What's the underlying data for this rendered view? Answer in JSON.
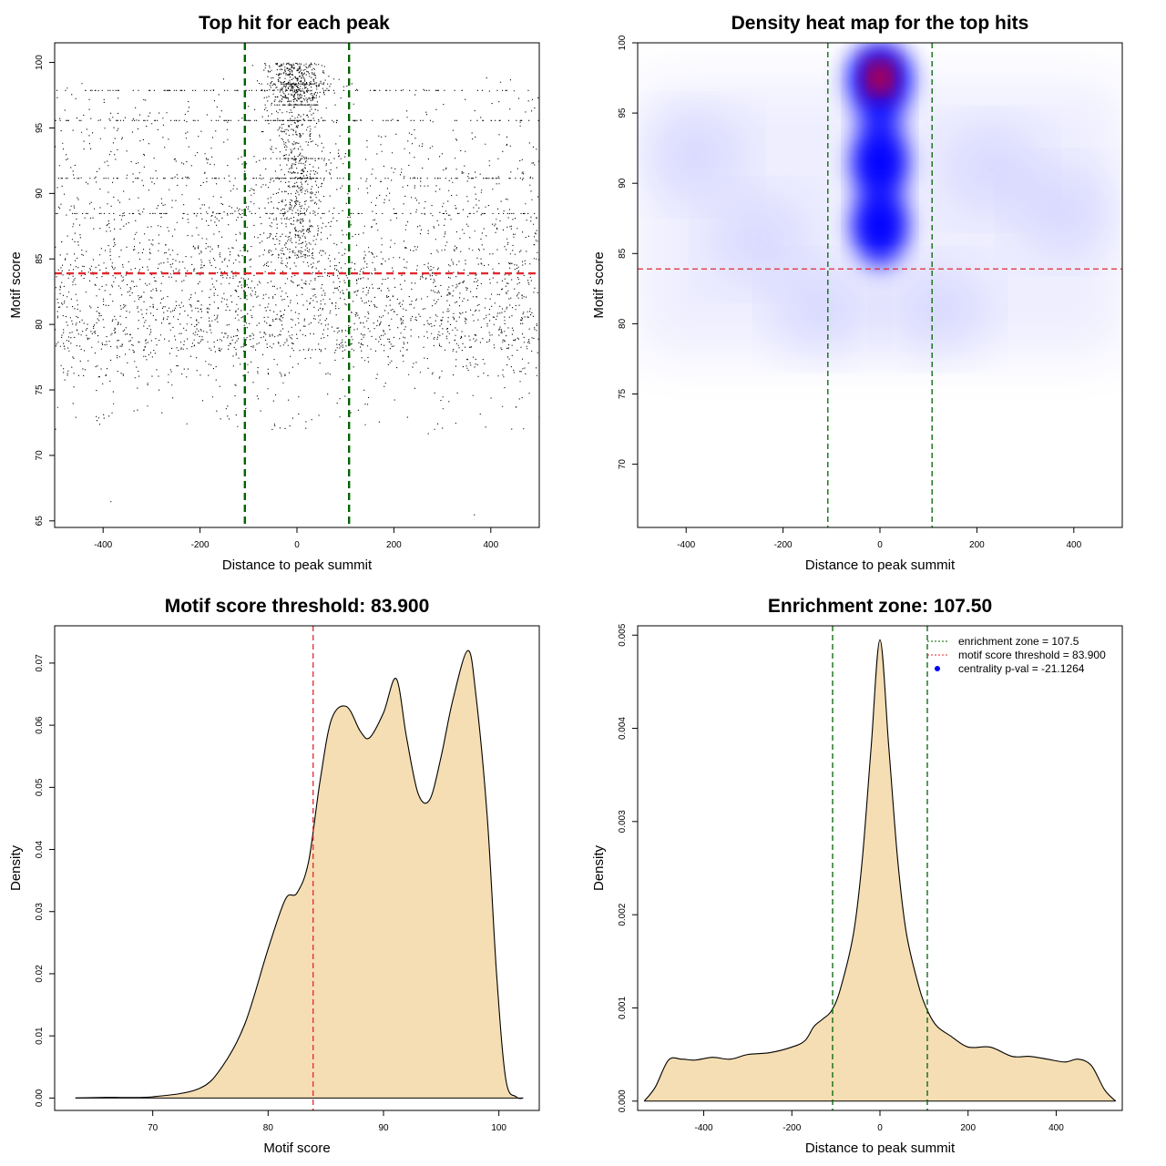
{
  "colors": {
    "threshold_line": "#e0282e",
    "zone_line": "#006400",
    "density_fill": "#f5deb3",
    "heat_low": "#ffffff",
    "heat_mid": "#0000ff",
    "heat_high": "#ff0000",
    "points": "#000000"
  },
  "chart_data": [
    {
      "type": "scatter",
      "title": "Top hit for each peak",
      "xlabel": "Distance to peak summit",
      "ylabel": "Motif score",
      "xlim": [
        -500,
        500
      ],
      "ylim": [
        64.5,
        101.5
      ],
      "xticks": [
        -400,
        -200,
        0,
        200,
        400
      ],
      "yticks": [
        65,
        70,
        75,
        80,
        85,
        90,
        95,
        100
      ],
      "hlines": [
        83.9
      ],
      "vlines": [
        -107.5,
        107.5
      ],
      "points_description": "approx. 10000 points; uniform in distance (-500..500) with a dense column at |distance| < 110 between scores 85 and 100"
    },
    {
      "type": "heatmap",
      "title": "Density heat map for the top hits",
      "xlabel": "Distance to peak summit",
      "ylabel": "Motif score",
      "xlim": [
        -500,
        500
      ],
      "ylim": [
        65.5,
        100
      ],
      "xticks": [
        -400,
        -200,
        0,
        200,
        400
      ],
      "yticks": [
        70,
        75,
        80,
        85,
        90,
        95,
        100
      ],
      "hlines": [
        83.9
      ],
      "vlines": [
        -107.5,
        107.5
      ],
      "hotspots": [
        {
          "x": 0,
          "y": 97.5,
          "level": 1.0
        },
        {
          "x": 0,
          "y": 91.5,
          "level": 0.55
        },
        {
          "x": 0,
          "y": 87,
          "level": 0.5
        }
      ]
    },
    {
      "type": "area",
      "title": "Motif score threshold: 83.900",
      "xlabel": "Motif score",
      "ylabel": "Density",
      "xlim": [
        61.5,
        103.5
      ],
      "ylim": [
        -0.002,
        0.076
      ],
      "xticks": [
        70,
        80,
        90,
        100
      ],
      "yticks": [
        0.0,
        0.01,
        0.02,
        0.03,
        0.04,
        0.05,
        0.06,
        0.07
      ],
      "ytick_labels": [
        "0.00",
        "0.01",
        "0.02",
        "0.03",
        "0.04",
        "0.05",
        "0.06",
        "0.07"
      ],
      "vlines": [
        83.9
      ],
      "x": [
        63.3,
        66,
        70,
        74,
        76,
        78,
        80,
        81.5,
        82.5,
        83.5,
        84.5,
        85.5,
        86.8,
        88,
        88.8,
        90,
        91.1,
        92,
        93,
        94,
        95,
        96,
        97.3,
        98,
        99,
        99.8,
        100.6,
        101.5,
        102.1
      ],
      "y": [
        0.0,
        0.0001,
        0.0002,
        0.0015,
        0.005,
        0.012,
        0.024,
        0.032,
        0.033,
        0.038,
        0.051,
        0.061,
        0.063,
        0.059,
        0.058,
        0.062,
        0.0675,
        0.058,
        0.049,
        0.048,
        0.055,
        0.064,
        0.072,
        0.065,
        0.045,
        0.02,
        0.003,
        0.0002,
        0.0
      ]
    },
    {
      "type": "area",
      "title": "Enrichment zone: 107.50",
      "xlabel": "Distance to peak summit",
      "ylabel": "Density",
      "xlim": [
        -550,
        550
      ],
      "ylim": [
        -0.0001,
        0.0051
      ],
      "xticks": [
        -400,
        -200,
        0,
        200,
        400
      ],
      "yticks": [
        0.0,
        0.001,
        0.002,
        0.003,
        0.004,
        0.005
      ],
      "ytick_labels": [
        "0.000",
        "0.001",
        "0.002",
        "0.003",
        "0.004",
        "0.005"
      ],
      "vlines": [
        -107.5,
        107.5
      ],
      "x": [
        -535,
        -510,
        -480,
        -450,
        -420,
        -380,
        -340,
        -300,
        -250,
        -200,
        -170,
        -150,
        -130,
        -110,
        -90,
        -60,
        -40,
        -20,
        0,
        20,
        40,
        60,
        90,
        110,
        130,
        160,
        200,
        250,
        300,
        340,
        380,
        420,
        450,
        480,
        510,
        535
      ],
      "y": [
        0.0,
        0.00015,
        0.00044,
        0.00045,
        0.00044,
        0.00047,
        0.00045,
        0.0005,
        0.00052,
        0.00058,
        0.00065,
        0.0008,
        0.00088,
        0.00097,
        0.0012,
        0.0018,
        0.0026,
        0.0038,
        0.00495,
        0.0038,
        0.0026,
        0.0018,
        0.0012,
        0.00095,
        0.0008,
        0.0007,
        0.00058,
        0.00058,
        0.00048,
        0.00048,
        0.00045,
        0.00042,
        0.00045,
        0.00038,
        0.00012,
        0.0
      ],
      "legend": {
        "placement": "top-right",
        "entries": [
          "enrichment zone = 107.5",
          "motif score threshold = 83.900",
          "centrality p-val = -21.1264"
        ]
      }
    }
  ]
}
